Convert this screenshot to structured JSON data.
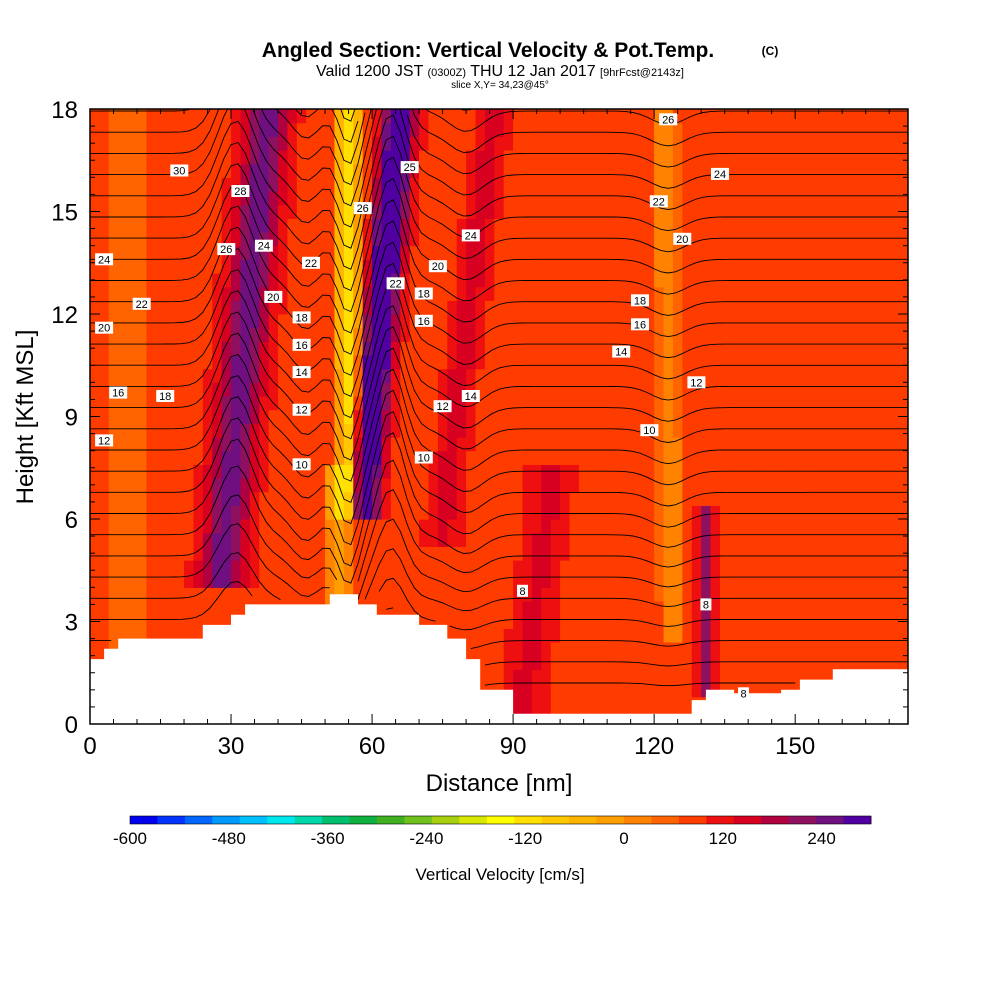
{
  "title": {
    "main": "Angled Section: Vertical Velocity & Pot.Temp.",
    "main_unit": "(C)",
    "valid_prefix": "Valid 1200 JST",
    "valid_utc": "(0300Z)",
    "valid_date": "THU 12 Jan 2017",
    "forecast": "[9hrFcst@2143z]",
    "slice": "slice X,Y= 34,23@45°"
  },
  "chart_data": {
    "type": "heatmap",
    "xlabel": "Distance [nm]",
    "ylabel": "Height [Kft MSL]",
    "xlim": [
      0,
      174
    ],
    "ylim": [
      0,
      18
    ],
    "xticks": [
      0,
      30,
      60,
      90,
      120,
      150
    ],
    "yticks": [
      0,
      3,
      6,
      9,
      12,
      15,
      18
    ],
    "grid": false,
    "velocity_field": {
      "background": 20,
      "features": [
        {
          "x_bottom": 28,
          "x_top": 38,
          "y_bottom": 4.5,
          "y_top": 18,
          "width": 4.5,
          "value": 150
        },
        {
          "x_bottom": 58,
          "x_top": 66,
          "y_bottom": 6.5,
          "y_top": 18,
          "width": 3.2,
          "value": 260
        },
        {
          "x_bottom": 55,
          "x_top": 55,
          "y_bottom": 6.5,
          "y_top": 18,
          "width": 2.6,
          "value": -200
        },
        {
          "x_bottom": 75,
          "x_top": 86,
          "y_bottom": 6,
          "y_top": 18,
          "width": 3,
          "value": 60
        },
        {
          "x_bottom": 92,
          "x_top": 98,
          "y_bottom": 0.5,
          "y_top": 7,
          "width": 4,
          "value": 50
        },
        {
          "x_bottom": 131,
          "x_top": 131,
          "y_bottom": 1.5,
          "y_top": 6,
          "width": 1.6,
          "value": 120
        },
        {
          "x_bottom": 124,
          "x_top": 122,
          "y_bottom": 3,
          "y_top": 18,
          "width": 2.5,
          "value": -80
        },
        {
          "x_bottom": 53,
          "x_top": 53,
          "y_bottom": 3,
          "y_top": 7,
          "width": 3,
          "value": -100
        },
        {
          "x_bottom": 8,
          "x_top": 8,
          "y_bottom": 2,
          "y_top": 18,
          "width": 6,
          "value": -30
        }
      ]
    },
    "terrain": {
      "x": [
        0,
        3,
        3,
        6,
        6,
        24,
        24,
        30,
        30,
        33,
        33,
        36,
        36,
        51,
        51,
        57,
        57,
        61,
        61,
        70,
        70,
        76,
        76,
        80,
        80,
        83,
        83,
        90,
        90,
        128,
        128,
        131,
        131,
        137,
        137,
        142,
        142,
        147,
        147,
        151,
        151,
        158,
        158,
        165,
        165,
        174
      ],
      "y": [
        1.9,
        1.9,
        2.2,
        2.2,
        2.5,
        2.5,
        2.9,
        2.9,
        3.2,
        3.2,
        3.5,
        3.5,
        3.5,
        3.5,
        3.8,
        3.8,
        3.5,
        3.5,
        3.2,
        3.2,
        2.9,
        2.9,
        2.5,
        2.5,
        1.9,
        1.9,
        1.0,
        1.0,
        0.3,
        0.3,
        0.7,
        0.7,
        1.0,
        1.0,
        0.9,
        0.9,
        0.9,
        0.9,
        1.0,
        1.0,
        1.3,
        1.3,
        1.6,
        1.6,
        1.6,
        1.6
      ]
    },
    "theta_contour_labels": [
      {
        "x": 19,
        "y": 16.2,
        "label": "30"
      },
      {
        "x": 32,
        "y": 15.6,
        "label": "28"
      },
      {
        "x": 29,
        "y": 13.9,
        "label": "26"
      },
      {
        "x": 37,
        "y": 14.0,
        "label": "24"
      },
      {
        "x": 3,
        "y": 13.6,
        "label": "24"
      },
      {
        "x": 11,
        "y": 12.3,
        "label": "22"
      },
      {
        "x": 3,
        "y": 11.6,
        "label": "20"
      },
      {
        "x": 47,
        "y": 13.5,
        "label": "22"
      },
      {
        "x": 39,
        "y": 12.5,
        "label": "20"
      },
      {
        "x": 45,
        "y": 11.9,
        "label": "18"
      },
      {
        "x": 45,
        "y": 11.1,
        "label": "16"
      },
      {
        "x": 45,
        "y": 10.3,
        "label": "14"
      },
      {
        "x": 45,
        "y": 9.2,
        "label": "12"
      },
      {
        "x": 45,
        "y": 7.6,
        "label": "10"
      },
      {
        "x": 6,
        "y": 9.7,
        "label": "16"
      },
      {
        "x": 16,
        "y": 9.6,
        "label": "18"
      },
      {
        "x": 3,
        "y": 8.3,
        "label": "12"
      },
      {
        "x": 58,
        "y": 15.1,
        "label": "26"
      },
      {
        "x": 68,
        "y": 16.3,
        "label": "25"
      },
      {
        "x": 74,
        "y": 13.4,
        "label": "20"
      },
      {
        "x": 65,
        "y": 12.9,
        "label": "22"
      },
      {
        "x": 71,
        "y": 12.6,
        "label": "18"
      },
      {
        "x": 71,
        "y": 11.8,
        "label": "16"
      },
      {
        "x": 81,
        "y": 14.3,
        "label": "24"
      },
      {
        "x": 75,
        "y": 9.3,
        "label": "12"
      },
      {
        "x": 81,
        "y": 9.6,
        "label": "14"
      },
      {
        "x": 71,
        "y": 7.8,
        "label": "10"
      },
      {
        "x": 92,
        "y": 3.9,
        "label": "8"
      },
      {
        "x": 123,
        "y": 17.7,
        "label": "26"
      },
      {
        "x": 134,
        "y": 16.1,
        "label": "24"
      },
      {
        "x": 121,
        "y": 15.3,
        "label": "22"
      },
      {
        "x": 126,
        "y": 14.2,
        "label": "20"
      },
      {
        "x": 117,
        "y": 12.4,
        "label": "18"
      },
      {
        "x": 117,
        "y": 11.7,
        "label": "16"
      },
      {
        "x": 113,
        "y": 10.9,
        "label": "14"
      },
      {
        "x": 129,
        "y": 10.0,
        "label": "12"
      },
      {
        "x": 119,
        "y": 8.6,
        "label": "10"
      },
      {
        "x": 131,
        "y": 3.5,
        "label": "8"
      },
      {
        "x": 139,
        "y": 0.9,
        "label": "8"
      }
    ],
    "colorbar": {
      "label": "Vertical Velocity [cm/s]",
      "tick_labels": [
        "-600",
        "-480",
        "-360",
        "-240",
        "-120",
        "0",
        "120",
        "240"
      ],
      "tick_values": [
        -600,
        -480,
        -360,
        -240,
        -120,
        0,
        120,
        240
      ],
      "min": -600,
      "max": 300,
      "step": 30,
      "colors": [
        "#0000ee",
        "#0033ff",
        "#0066ff",
        "#0099ff",
        "#00c0ff",
        "#00e8ee",
        "#00d8aa",
        "#00c070",
        "#10b040",
        "#40b020",
        "#70c020",
        "#a8d010",
        "#d8e800",
        "#ffff00",
        "#ffe000",
        "#ffc800",
        "#ffb400",
        "#ff9e00",
        "#ff8200",
        "#ff6400",
        "#ff3c00",
        "#ee1010",
        "#d80020",
        "#b00040",
        "#901060",
        "#701080",
        "#5000a0"
      ]
    }
  }
}
